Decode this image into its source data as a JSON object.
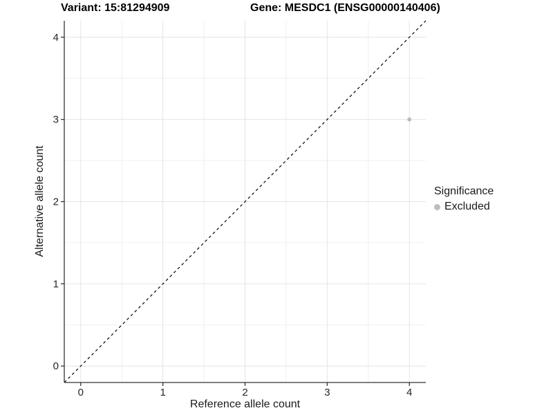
{
  "titles": {
    "left": "Variant: 15:81294909",
    "right": "Gene: MESDC1 (ENSG00000140406)"
  },
  "axes": {
    "x_label": "Reference allele count",
    "y_label": "Alternative allele count"
  },
  "legend": {
    "title": "Significance",
    "entries": [
      {
        "label": "Excluded",
        "color": "#bdbdbd"
      }
    ]
  },
  "chart_data": {
    "type": "scatter",
    "title": "Variant: 15:81294909   Gene: MESDC1 (ENSG00000140406)",
    "xlabel": "Reference allele count",
    "ylabel": "Alternative allele count",
    "xlim": [
      -0.2,
      4.2
    ],
    "ylim": [
      -0.2,
      4.2
    ],
    "x_ticks": [
      0,
      1,
      2,
      3,
      4
    ],
    "y_ticks": [
      0,
      1,
      2,
      3,
      4
    ],
    "x_minor_ticks": [
      0.5,
      1.5,
      2.5,
      3.5
    ],
    "y_minor_ticks": [
      0.5,
      1.5,
      2.5,
      3.5
    ],
    "grid": "on",
    "legend_position": "right",
    "reference_line": {
      "type": "identity",
      "style": "dashed",
      "color": "#000000"
    },
    "series": [
      {
        "name": "Excluded",
        "color": "#bdbdbd",
        "points": [
          {
            "x": 4,
            "y": 3
          }
        ]
      }
    ]
  }
}
